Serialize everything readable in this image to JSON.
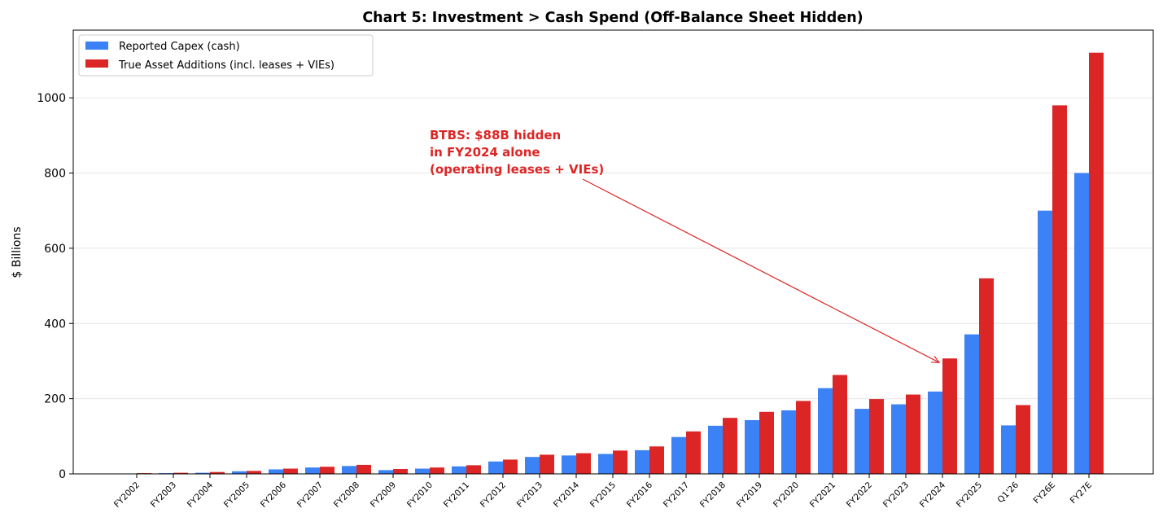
{
  "chart_data": {
    "type": "bar",
    "title": "Chart 5: Investment > Cash Spend (Off-Balance Sheet Hidden)",
    "xlabel": "",
    "ylabel": "$ Billions",
    "ylim": [
      0,
      1180
    ],
    "yticks": [
      0,
      200,
      400,
      600,
      800,
      1000
    ],
    "grid": "horizontal",
    "legend_position": "top-left",
    "categories": [
      "FY2002",
      "FY2003",
      "FY2004",
      "FY2005",
      "FY2006",
      "FY2007",
      "FY2008",
      "FY2009",
      "FY2010",
      "FY2011",
      "FY2012",
      "FY2013",
      "FY2014",
      "FY2015",
      "FY2016",
      "FY2017",
      "FY2018",
      "FY2019",
      "FY2020",
      "FY2021",
      "FY2022",
      "FY2023",
      "FY2024",
      "FY2025",
      "Q1'26",
      "FY26E",
      "FY27E"
    ],
    "series": [
      {
        "name": "Reported Capex (cash)",
        "color": "#3b82f6",
        "values": [
          1,
          2,
          3,
          7,
          12,
          17,
          21,
          10,
          14,
          20,
          33,
          45,
          49,
          53,
          63,
          98,
          128,
          143,
          169,
          228,
          173,
          185,
          219,
          371,
          129,
          700,
          800
        ]
      },
      {
        "name": "True Asset Additions (incl. leases + VIEs)",
        "color": "#dc2626",
        "values": [
          2,
          3,
          5,
          8,
          14,
          19,
          24,
          13,
          17,
          23,
          38,
          51,
          55,
          62,
          73,
          113,
          149,
          165,
          194,
          263,
          199,
          211,
          307,
          520,
          183,
          980,
          1120
        ]
      }
    ],
    "annotation": {
      "lines": [
        "BTBS: $88B hidden",
        "in FY2024 alone",
        "(operating leases + VIEs)"
      ],
      "color": "#dc2626",
      "target_category": "FY2024",
      "target_value": 307,
      "text_anchor_category": "FY2010",
      "text_anchor_value": 890
    }
  }
}
